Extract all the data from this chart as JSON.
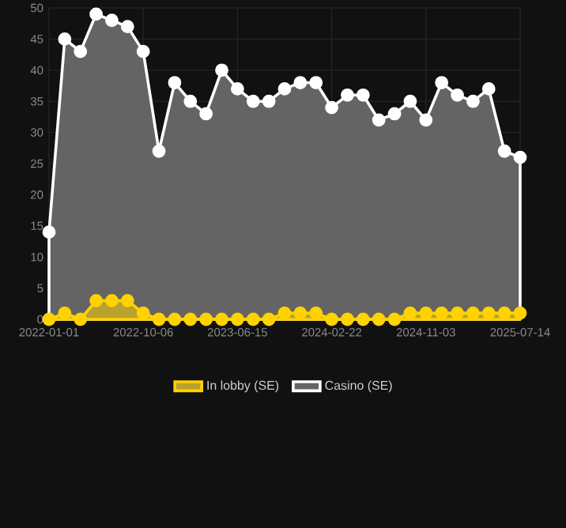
{
  "chart_data": {
    "type": "area",
    "categories": [
      "2022-01-01",
      null,
      null,
      null,
      null,
      null,
      "2022-10-06",
      null,
      null,
      null,
      null,
      null,
      "2023-06-15",
      null,
      null,
      null,
      null,
      null,
      "2024-02-22",
      null,
      null,
      null,
      null,
      null,
      "2024-11-03",
      null,
      null,
      null,
      null,
      null,
      "2025-07-14"
    ],
    "series": [
      {
        "name": "In lobby (SE)",
        "color": "#ffd200",
        "values": [
          0,
          1,
          0,
          3,
          3,
          3,
          1,
          0,
          0,
          0,
          0,
          0,
          0,
          0,
          0,
          1,
          1,
          1,
          0,
          0,
          0,
          0,
          0,
          1,
          1,
          1,
          1,
          1,
          1,
          1,
          1
        ]
      },
      {
        "name": "Casino (SE)",
        "color": "#ffffff",
        "values": [
          14,
          45,
          43,
          49,
          48,
          47,
          43,
          27,
          38,
          35,
          33,
          40,
          37,
          35,
          35,
          37,
          38,
          38,
          34,
          36,
          36,
          32,
          33,
          35,
          32,
          38,
          36,
          35,
          37,
          27,
          26
        ]
      }
    ],
    "ylim": [
      0,
      50
    ],
    "yticks": [
      0,
      5,
      10,
      15,
      20,
      25,
      30,
      35,
      40,
      45,
      50
    ],
    "grid": true,
    "legend": "bottom",
    "marker": "circle",
    "line_style": "solid"
  }
}
